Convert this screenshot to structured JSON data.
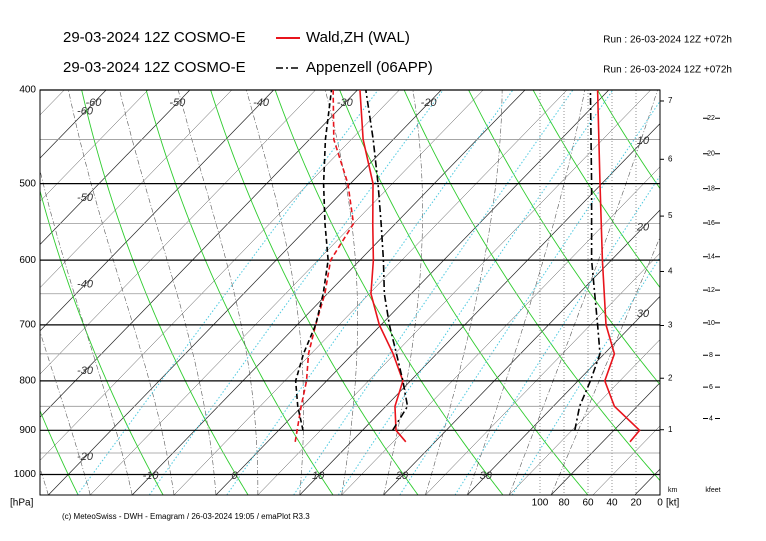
{
  "header": {
    "rows": [
      {
        "model": "29-03-2024 12Z COSMO-E",
        "station": "Wald,ZH (WAL)",
        "run": "Run : 26-03-2024 12Z +072h",
        "color": "#e8141c",
        "dash": "solid"
      },
      {
        "model": "29-03-2024 12Z COSMO-E",
        "station": "Appenzell (06APP)",
        "run": "Run : 26-03-2024 12Z +072h",
        "color": "#000000",
        "dash": "dashdot"
      }
    ]
  },
  "footer": "(c) MeteoSwiss - DWH - Emagram / 26-03-2024  19:05 / emaPlot R3.3",
  "chart_data": {
    "type": "emagram",
    "log_scale": true,
    "ylim": [
      1050,
      400
    ],
    "yticks": [
      400,
      500,
      600,
      700,
      800,
      900,
      1000
    ],
    "minor_yticks": [
      450,
      550,
      650,
      750,
      850,
      950
    ],
    "y_unit": "[hPa]",
    "xlim": [
      -21,
      53
    ],
    "isotherm_labels": {
      "top": [
        -60,
        -50,
        -40,
        -30,
        -20
      ],
      "left": [
        -60,
        -50,
        -40,
        -30,
        -20
      ],
      "bottom": [
        -10,
        0,
        10,
        20,
        30
      ],
      "right": [
        10,
        20,
        30
      ]
    },
    "series": [
      {
        "color": "#e8141c",
        "dash": "solid",
        "pressure": [
          925,
          900,
          850,
          800,
          750,
          700,
          650,
          600,
          550,
          500,
          450,
          400
        ],
        "values": [
          16.5,
          14.0,
          11.1,
          9.1,
          4.8,
          -0.2,
          -4.8,
          -8.4,
          -12.7,
          -17.3,
          -23.6,
          -29.7
        ]
      },
      {
        "color": "#e8141c",
        "dash": "dashed",
        "pressure": [
          925,
          900,
          850,
          800,
          750,
          700,
          650,
          600,
          550,
          500,
          450,
          400
        ],
        "values": [
          3.3,
          2.2,
          -0.1,
          -2.4,
          -5.3,
          -7.8,
          -10.3,
          -13.5,
          -15.0,
          -20.3,
          -27.1,
          -32.9
        ]
      },
      {
        "color": "#000000",
        "dash": "dashdot",
        "pressure": [
          900,
          850,
          800,
          750,
          700,
          650,
          600,
          550,
          500,
          450,
          400
        ],
        "values": [
          13.6,
          12.6,
          9.1,
          5.2,
          1.0,
          -3.2,
          -7.2,
          -11.7,
          -16.7,
          -22.4,
          -29.0
        ]
      },
      {
        "color": "#000000",
        "dash": "dashed",
        "pressure": [
          900,
          850,
          800,
          750,
          700,
          650,
          600,
          550,
          500,
          450,
          400
        ],
        "values": [
          2.9,
          -0.5,
          -3.7,
          -5.9,
          -7.8,
          -10.5,
          -13.8,
          -18.4,
          -23.2,
          -28.1,
          -33.1
        ]
      }
    ],
    "wind_xlim": [
      100,
      0
    ],
    "wind_xticks": [
      100,
      80,
      60,
      40,
      20,
      0
    ],
    "wind_unit": "[kt]",
    "wind_series": [
      {
        "color": "#e8141c",
        "dash": "solid",
        "pressure": [
          925,
          900,
          850,
          800,
          750,
          700,
          600,
          500,
          400
        ],
        "values": [
          25,
          17,
          38,
          46,
          38,
          45,
          48,
          50,
          52
        ]
      },
      {
        "color": "#000000",
        "dash": "dashdot",
        "pressure": [
          900,
          850,
          800,
          750,
          700,
          600,
          500,
          400
        ],
        "values": [
          71,
          67,
          58,
          50,
          52,
          57,
          57,
          58
        ]
      }
    ],
    "km_label": "km",
    "km_ticks": [
      1,
      2,
      3,
      4,
      5,
      6,
      7
    ],
    "kfeet_label": "kfeet",
    "kfeet_ticks": [
      4,
      6,
      8,
      10,
      12,
      14,
      16,
      18,
      20,
      22
    ]
  }
}
